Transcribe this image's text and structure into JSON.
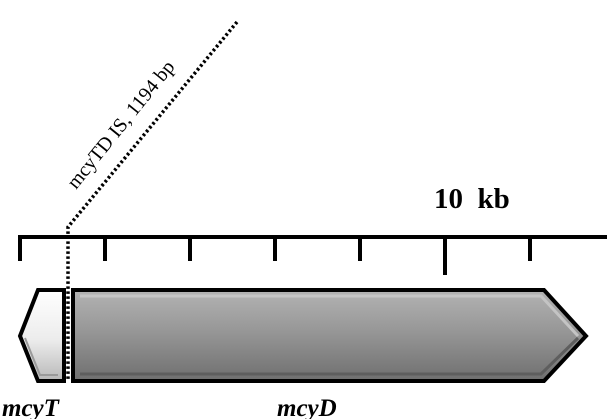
{
  "scale": {
    "label": "10  kb"
  },
  "insertion": {
    "label": "mcyTD IS, 1194 bp"
  },
  "genes": [
    {
      "id": "mcyT",
      "label": "mcyT",
      "direction": "left",
      "fill": "light gray"
    },
    {
      "id": "mcyD",
      "label": "mcyD",
      "direction": "right",
      "fill": "gray"
    }
  ],
  "colors": {
    "outline": "#000000",
    "mcyT_light": "#ffffff",
    "mcyT_dark": "#b8b8b8",
    "mcyD_light": "#b3b3b3",
    "mcyD_mid": "#8f8f8f",
    "mcyD_dark": "#6f6f6f"
  }
}
